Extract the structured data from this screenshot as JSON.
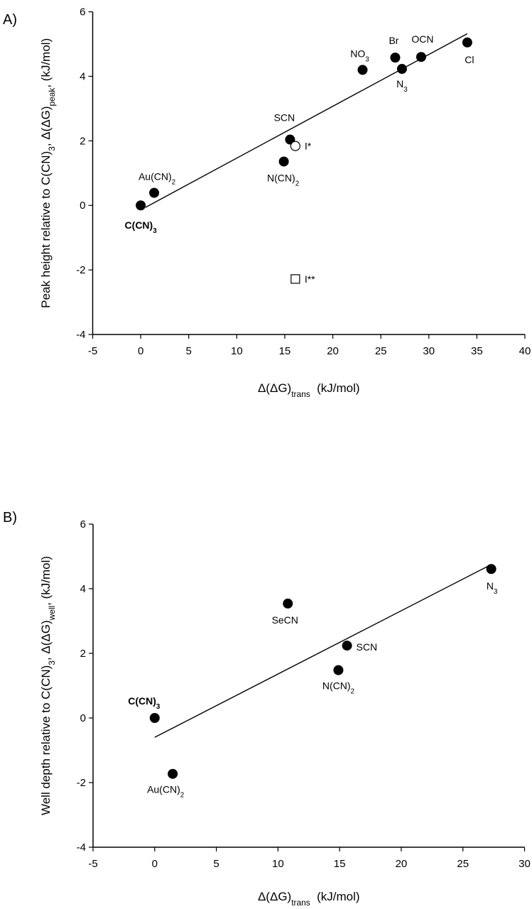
{
  "chart_data": [
    {
      "type": "scatter",
      "panel_label": "A)",
      "xlabel": {
        "main": "Δ(ΔG)",
        "sub": "trans",
        "rest": "  (kJ/mol)"
      },
      "ylabel": {
        "pre": "Peak height relative to C(CN)",
        "sub1": "3",
        "mid": ", Δ(ΔG)",
        "sub2": "peak",
        "rest": ", (kJ/mol)"
      },
      "xlim": [
        -5,
        40
      ],
      "ylim": [
        -4,
        6
      ],
      "xticks": [
        -5,
        0,
        5,
        10,
        15,
        20,
        25,
        30,
        35,
        40
      ],
      "yticks": [
        -4,
        -2,
        0,
        2,
        4,
        6
      ],
      "grid": false,
      "fit_line": {
        "x": [
          0.5,
          34.0
        ],
        "y": [
          -0.06,
          5.32
        ]
      },
      "points": [
        {
          "label": "C(CN)",
          "sub": "3",
          "x": 0,
          "y": 0,
          "marker": "filled-circle",
          "bold": true
        },
        {
          "label": "Au(CN)",
          "sub": "2",
          "x": 1.4,
          "y": 0.39,
          "marker": "filled-circle"
        },
        {
          "label": "N(CN)",
          "sub": "2",
          "x": 14.9,
          "y": 1.36,
          "marker": "filled-circle"
        },
        {
          "label": "SCN",
          "sub": "",
          "x": 15.55,
          "y": 2.04,
          "marker": "filled-circle"
        },
        {
          "label": "I*",
          "sub": "",
          "x": 16.1,
          "y": 1.84,
          "marker": "open-circle"
        },
        {
          "label": "I**",
          "sub": "",
          "x": 16.1,
          "y": -2.28,
          "marker": "open-square"
        },
        {
          "label": "NO",
          "sub": "3",
          "x": 23.1,
          "y": 4.2,
          "marker": "filled-circle"
        },
        {
          "label": "Br",
          "sub": "",
          "x": 26.5,
          "y": 4.58,
          "marker": "filled-circle"
        },
        {
          "label": "N",
          "sub": "3",
          "x": 27.2,
          "y": 4.23,
          "marker": "filled-circle"
        },
        {
          "label": "OCN",
          "sub": "",
          "x": 29.2,
          "y": 4.6,
          "marker": "filled-circle"
        },
        {
          "label": "Cl",
          "sub": "",
          "x": 34.0,
          "y": 5.05,
          "marker": "filled-circle"
        }
      ]
    },
    {
      "type": "scatter",
      "panel_label": "B)",
      "xlabel": {
        "main": "Δ(ΔG)",
        "sub": "trans",
        "rest": "  (kJ/mol)"
      },
      "ylabel": {
        "pre": "Well depth relative to C(CN)",
        "sub1": "3",
        "mid": ", Δ(ΔG)",
        "sub2": "well",
        "rest": ", (kJ/mol)"
      },
      "xlim": [
        -5,
        30
      ],
      "ylim": [
        -4,
        6
      ],
      "xticks": [
        -5,
        0,
        5,
        10,
        15,
        20,
        25,
        30
      ],
      "yticks": [
        -4,
        -2,
        0,
        2,
        4,
        6
      ],
      "grid": false,
      "fit_line": {
        "x": [
          0,
          27.1
        ],
        "y": [
          -0.6,
          4.71
        ]
      },
      "points": [
        {
          "label": "C(CN)",
          "sub": "3",
          "x": 0,
          "y": 0,
          "marker": "filled-circle",
          "bold": true
        },
        {
          "label": "Au(CN)",
          "sub": "2",
          "x": 1.46,
          "y": -1.73,
          "marker": "filled-circle"
        },
        {
          "label": "SeCN",
          "sub": "",
          "x": 10.8,
          "y": 3.54,
          "marker": "filled-circle"
        },
        {
          "label": "N(CN)",
          "sub": "2",
          "x": 14.9,
          "y": 1.48,
          "marker": "filled-circle"
        },
        {
          "label": "SCN",
          "sub": "",
          "x": 15.6,
          "y": 2.24,
          "marker": "filled-circle"
        },
        {
          "label": "N",
          "sub": "3",
          "x": 27.3,
          "y": 4.61,
          "marker": "filled-circle"
        }
      ]
    }
  ]
}
